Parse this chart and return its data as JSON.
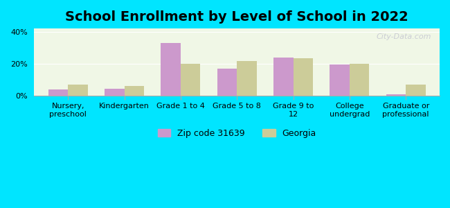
{
  "title": "School Enrollment by Level of School in 2022",
  "categories": [
    "Nursery,\npreschool",
    "Kindergarten",
    "Grade 1 to 4",
    "Grade 5 to 8",
    "Grade 9 to\n12",
    "College\nundergrad",
    "Graduate or\nprofessional"
  ],
  "zip_values": [
    4.0,
    4.5,
    33.0,
    17.0,
    24.0,
    19.5,
    1.0
  ],
  "georgia_values": [
    7.0,
    6.0,
    20.0,
    21.5,
    23.5,
    20.0,
    7.0
  ],
  "zip_color": "#cc99cc",
  "georgia_color": "#cccc99",
  "background_outer": "#00e5ff",
  "background_inner": "#f0f7e6",
  "ylim": [
    0,
    42
  ],
  "yticks": [
    0,
    20,
    40
  ],
  "ytick_labels": [
    "0%",
    "20%",
    "40%"
  ],
  "zip_label": "Zip code 31639",
  "georgia_label": "Georgia",
  "bar_width": 0.35,
  "title_fontsize": 14,
  "tick_fontsize": 8,
  "legend_fontsize": 9
}
